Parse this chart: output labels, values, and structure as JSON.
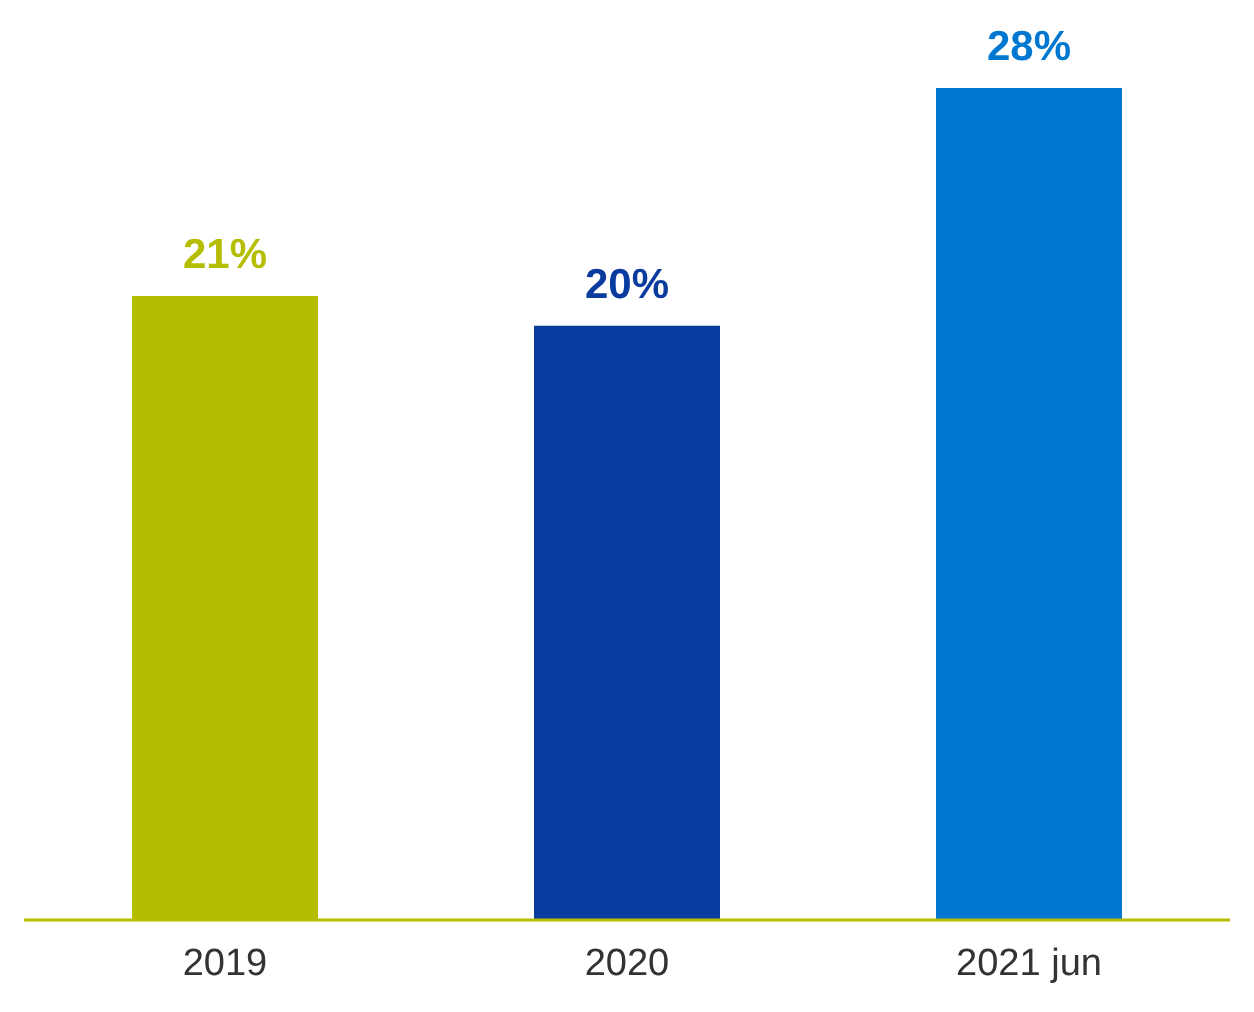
{
  "chart_data": {
    "type": "bar",
    "categories": [
      "2019",
      "2020",
      "2021 jun"
    ],
    "values": [
      21,
      20,
      28
    ],
    "value_labels": [
      "21%",
      "20%",
      "28%"
    ],
    "colors": [
      "#b5bd00",
      "#0a3ca0",
      "#0077d0"
    ]
  }
}
